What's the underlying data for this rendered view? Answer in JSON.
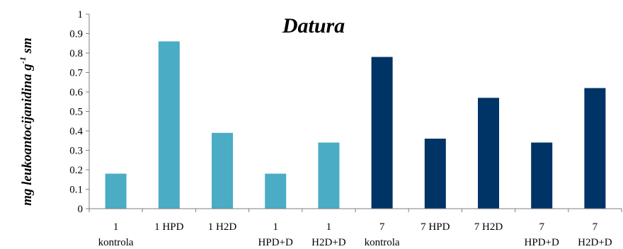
{
  "chart_data": {
    "type": "bar",
    "title": "Datura",
    "ylabel": "mg leukoantocijanidina g",
    "ylabel_sup": "-1",
    "ylabel_unit": "sm",
    "ylim": [
      0,
      1
    ],
    "yticks": [
      "0",
      "0.1",
      "0.2",
      "0.3",
      "0.4",
      "0.5",
      "0.6",
      "0.7",
      "0.8",
      "0.9",
      "1"
    ],
    "categories": [
      [
        "1",
        "kontrola"
      ],
      [
        "1 HPD"
      ],
      [
        "1 H2D"
      ],
      [
        "1",
        "HPD+D"
      ],
      [
        "1",
        "H2D+D"
      ],
      [
        "7",
        "kontrola"
      ],
      [
        "7 HPD"
      ],
      [
        "7 H2D"
      ],
      [
        "7",
        "HPD+D"
      ],
      [
        "7",
        "H2D+D"
      ]
    ],
    "values": [
      0.18,
      0.86,
      0.39,
      0.18,
      0.34,
      0.78,
      0.36,
      0.57,
      0.34,
      0.62
    ],
    "bar_colors": [
      "#4bacc6",
      "#4bacc6",
      "#4bacc6",
      "#4bacc6",
      "#4bacc6",
      "#003366",
      "#003366",
      "#003366",
      "#003366",
      "#003366"
    ],
    "grid": false,
    "legend": "none"
  }
}
